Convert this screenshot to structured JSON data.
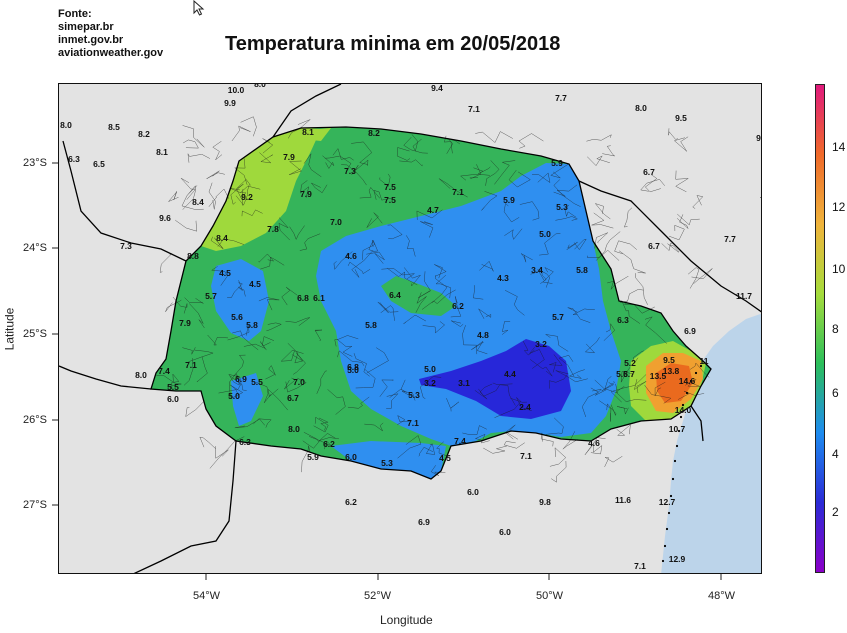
{
  "source": {
    "heading": "Fonte:",
    "lines": [
      "simepar.br",
      "inmet.gov.br",
      "aviationweather.gov"
    ]
  },
  "title": "Temperatura minima em 20/05/2018",
  "axes": {
    "xlabel": "Longitude",
    "ylabel": "Latitude",
    "x_ticks": [
      "54°W",
      "52°W",
      "50°W",
      "48°W"
    ],
    "y_ticks": [
      "23°S",
      "24°S",
      "25°S",
      "26°S",
      "27°S"
    ]
  },
  "colorbar": {
    "ticks": [
      "2",
      "4",
      "6",
      "8",
      "10",
      "12",
      "14"
    ],
    "colors": [
      "#8b00c8",
      "#2b2bd6",
      "#1e8cf0",
      "#2bbf5a",
      "#a6dc3c",
      "#f0b43c",
      "#f06a2a",
      "#e01a7c"
    ]
  },
  "colors": {
    "ocean": "#bcd4ea",
    "land_background": "#e3e3e3",
    "green": "#35b45a",
    "lightgreen": "#9fd93c",
    "blue": "#2f8ff0",
    "darkblue": "#2727d9",
    "orange": "#f0a030",
    "darkorange": "#ea6a1e"
  },
  "stations": [
    {
      "v": "10.0",
      "x": 235,
      "y": 89
    },
    {
      "v": "8.0",
      "x": 259,
      "y": 83
    },
    {
      "v": "9.9",
      "x": 229,
      "y": 102
    },
    {
      "v": "9.4",
      "x": 436,
      "y": 87
    },
    {
      "v": "7.1",
      "x": 473,
      "y": 108
    },
    {
      "v": "7.7",
      "x": 560,
      "y": 97
    },
    {
      "v": "8.0",
      "x": 640,
      "y": 107
    },
    {
      "v": "9.5",
      "x": 680,
      "y": 117
    },
    {
      "v": "9.2",
      "x": 761,
      "y": 137
    },
    {
      "v": "8.0",
      "x": 65,
      "y": 124
    },
    {
      "v": "8.5",
      "x": 113,
      "y": 126
    },
    {
      "v": "8.2",
      "x": 143,
      "y": 133
    },
    {
      "v": "8.1",
      "x": 161,
      "y": 151
    },
    {
      "v": "6.3",
      "x": 73,
      "y": 158
    },
    {
      "v": "6.5",
      "x": 98,
      "y": 163
    },
    {
      "v": "8.1",
      "x": 307,
      "y": 131
    },
    {
      "v": "8.2",
      "x": 373,
      "y": 132
    },
    {
      "v": "7.9",
      "x": 288,
      "y": 156
    },
    {
      "v": "5.9",
      "x": 556,
      "y": 162
    },
    {
      "v": "7.3",
      "x": 349,
      "y": 170
    },
    {
      "v": "6.7",
      "x": 648,
      "y": 171
    },
    {
      "v": "7.5",
      "x": 389,
      "y": 186
    },
    {
      "v": "7.1",
      "x": 457,
      "y": 191
    },
    {
      "v": "9.2",
      "x": 246,
      "y": 196
    },
    {
      "v": "7.9",
      "x": 305,
      "y": 193
    },
    {
      "v": "7.5",
      "x": 389,
      "y": 199
    },
    {
      "v": "5.9",
      "x": 508,
      "y": 199
    },
    {
      "v": "7.4",
      "x": 765,
      "y": 199
    },
    {
      "v": "8.4",
      "x": 197,
      "y": 201
    },
    {
      "v": "4.7",
      "x": 432,
      "y": 209
    },
    {
      "v": "5.3",
      "x": 561,
      "y": 206
    },
    {
      "v": "9.6",
      "x": 164,
      "y": 217
    },
    {
      "v": "7.0",
      "x": 335,
      "y": 221
    },
    {
      "v": "7.8",
      "x": 272,
      "y": 228
    },
    {
      "v": "5.0",
      "x": 544,
      "y": 233
    },
    {
      "v": "8.4",
      "x": 221,
      "y": 237
    },
    {
      "v": "7.7",
      "x": 729,
      "y": 238
    },
    {
      "v": "7.3",
      "x": 125,
      "y": 245
    },
    {
      "v": "6.7",
      "x": 653,
      "y": 245
    },
    {
      "v": "8.8",
      "x": 192,
      "y": 255
    },
    {
      "v": "4.6",
      "x": 350,
      "y": 255
    },
    {
      "v": "3.4",
      "x": 536,
      "y": 269
    },
    {
      "v": "5.8",
      "x": 581,
      "y": 269
    },
    {
      "v": "4.5",
      "x": 224,
      "y": 272
    },
    {
      "v": "4.3",
      "x": 502,
      "y": 277
    },
    {
      "v": "4.5",
      "x": 254,
      "y": 283
    },
    {
      "v": "5.7",
      "x": 210,
      "y": 295
    },
    {
      "v": "6.8",
      "x": 302,
      "y": 297
    },
    {
      "v": "6.1",
      "x": 318,
      "y": 297
    },
    {
      "v": "6.4",
      "x": 394,
      "y": 294
    },
    {
      "v": "11.7",
      "x": 743,
      "y": 295
    },
    {
      "v": "6.2",
      "x": 457,
      "y": 305
    },
    {
      "v": "9.6",
      "x": 768,
      "y": 306
    },
    {
      "v": "5.6",
      "x": 236,
      "y": 316
    },
    {
      "v": "5.7",
      "x": 557,
      "y": 316
    },
    {
      "v": "6.3",
      "x": 622,
      "y": 319
    },
    {
      "v": "7.9",
      "x": 184,
      "y": 322
    },
    {
      "v": "5.8",
      "x": 251,
      "y": 324
    },
    {
      "v": "5.8",
      "x": 370,
      "y": 324
    },
    {
      "v": "6.9",
      "x": 689,
      "y": 330
    },
    {
      "v": "4.8",
      "x": 482,
      "y": 334
    },
    {
      "v": "3.2",
      "x": 540,
      "y": 343
    },
    {
      "v": "9.5",
      "x": 668,
      "y": 359
    },
    {
      "v": "5.2",
      "x": 629,
      "y": 362
    },
    {
      "v": "11",
      "x": 703,
      "y": 360
    },
    {
      "v": "7.4",
      "x": 163,
      "y": 370
    },
    {
      "v": "7.1",
      "x": 190,
      "y": 364
    },
    {
      "v": "6.8",
      "x": 352,
      "y": 366
    },
    {
      "v": "5.0",
      "x": 429,
      "y": 368
    },
    {
      "v": "5.0",
      "x": 352,
      "y": 369
    },
    {
      "v": "13.8",
      "x": 670,
      "y": 370
    },
    {
      "v": "8.0",
      "x": 140,
      "y": 374
    },
    {
      "v": "4.4",
      "x": 509,
      "y": 373
    },
    {
      "v": "5.6",
      "x": 621,
      "y": 373
    },
    {
      "v": "5.7",
      "x": 628,
      "y": 373
    },
    {
      "v": "13.5",
      "x": 657,
      "y": 375
    },
    {
      "v": "6.9",
      "x": 240,
      "y": 378
    },
    {
      "v": "7.0",
      "x": 298,
      "y": 381
    },
    {
      "v": "5.5",
      "x": 256,
      "y": 381
    },
    {
      "v": "3.2",
      "x": 429,
      "y": 382
    },
    {
      "v": "3.1",
      "x": 463,
      "y": 382
    },
    {
      "v": "14.6",
      "x": 686,
      "y": 380
    },
    {
      "v": "5.5",
      "x": 172,
      "y": 386
    },
    {
      "v": "5.0",
      "x": 233,
      "y": 395
    },
    {
      "v": "5.3",
      "x": 413,
      "y": 394
    },
    {
      "v": "6.0",
      "x": 172,
      "y": 398
    },
    {
      "v": "6.7",
      "x": 292,
      "y": 397
    },
    {
      "v": "2.4",
      "x": 524,
      "y": 406
    },
    {
      "v": "14.0",
      "x": 682,
      "y": 409
    },
    {
      "v": "7.1",
      "x": 412,
      "y": 422
    },
    {
      "v": "8.0",
      "x": 293,
      "y": 428
    },
    {
      "v": "10.7",
      "x": 676,
      "y": 428
    },
    {
      "v": "7.4",
      "x": 459,
      "y": 440
    },
    {
      "v": "4.6",
      "x": 593,
      "y": 442
    },
    {
      "v": "6.3",
      "x": 244,
      "y": 441
    },
    {
      "v": "6.2",
      "x": 328,
      "y": 443
    },
    {
      "v": "5.9",
      "x": 312,
      "y": 456
    },
    {
      "v": "6.0",
      "x": 350,
      "y": 456
    },
    {
      "v": "4.5",
      "x": 444,
      "y": 457
    },
    {
      "v": "7.1",
      "x": 525,
      "y": 455
    },
    {
      "v": "5.3",
      "x": 386,
      "y": 462
    },
    {
      "v": "6.0",
      "x": 472,
      "y": 491
    },
    {
      "v": "6.2",
      "x": 350,
      "y": 501
    },
    {
      "v": "9.8",
      "x": 544,
      "y": 501
    },
    {
      "v": "11.6",
      "x": 622,
      "y": 499
    },
    {
      "v": "12.7",
      "x": 666,
      "y": 501
    },
    {
      "v": "6.9",
      "x": 423,
      "y": 521
    },
    {
      "v": "6.0",
      "x": 504,
      "y": 531
    },
    {
      "v": "12.9",
      "x": 676,
      "y": 558
    },
    {
      "v": "7.1",
      "x": 639,
      "y": 565
    },
    {
      "v": "5.9",
      "x": 528,
      "y": 576
    }
  ]
}
